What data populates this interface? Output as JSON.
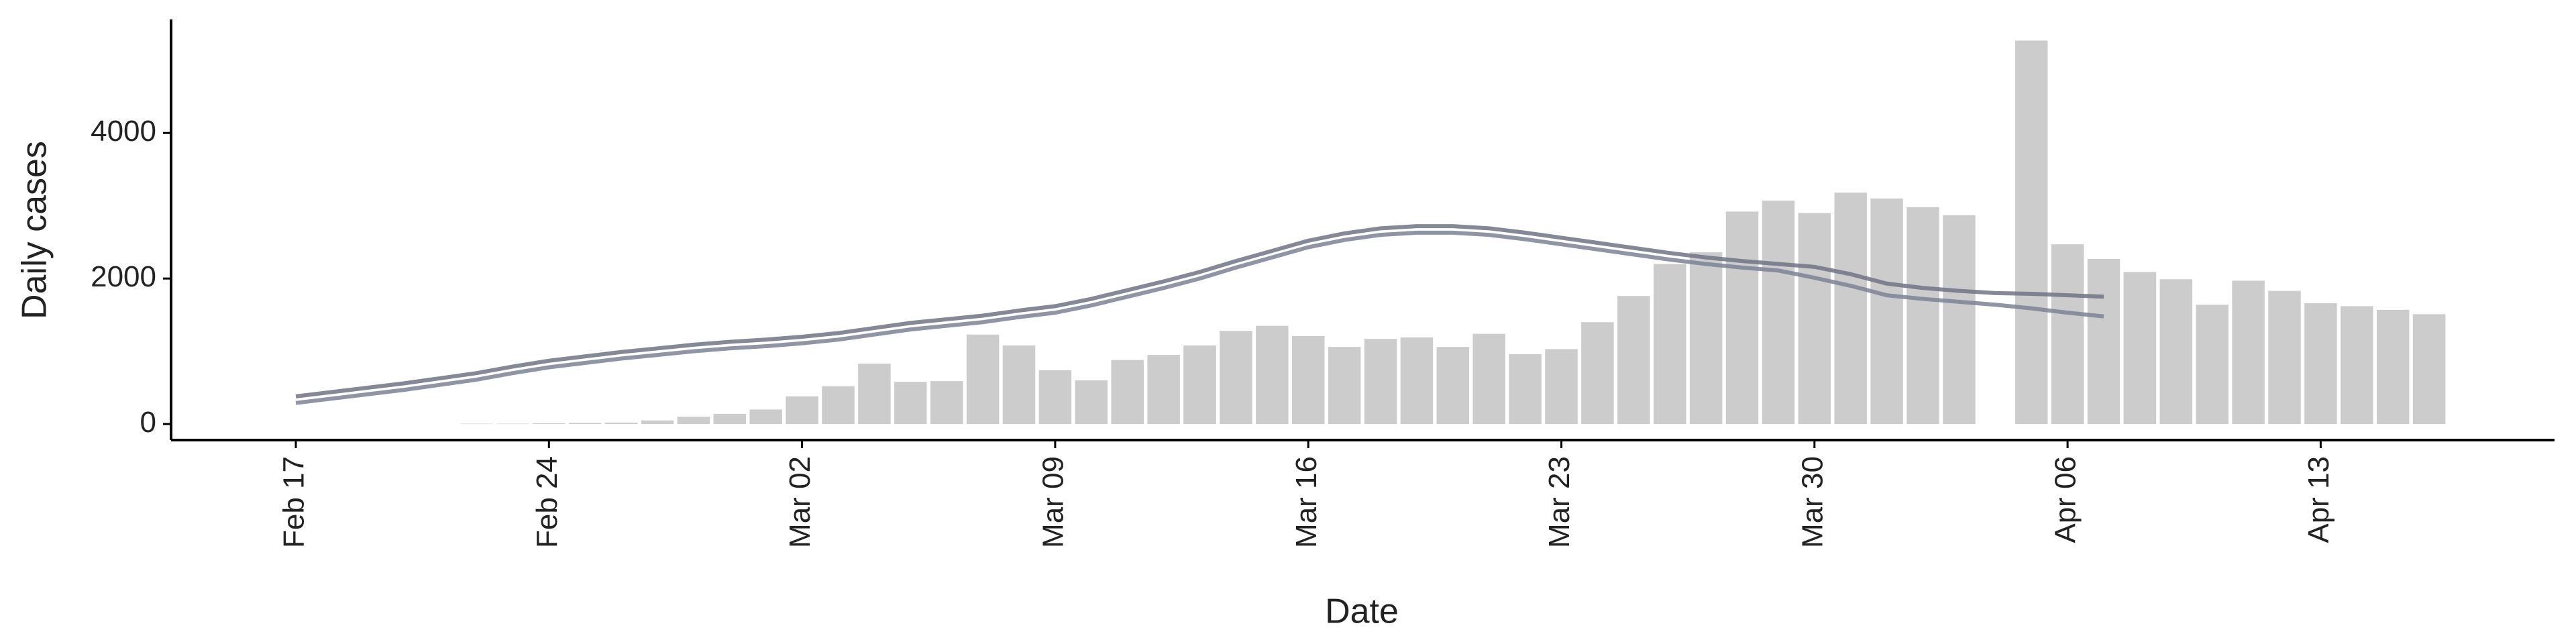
{
  "chart_data": {
    "type": "bar",
    "xlabel": "Date",
    "ylabel": "Daily cases",
    "categories": [
      "Feb 17",
      null,
      null,
      null,
      null,
      null,
      null,
      "Feb 24",
      null,
      null,
      null,
      null,
      null,
      null,
      "Mar 02",
      null,
      null,
      null,
      null,
      null,
      null,
      "Mar 09",
      null,
      null,
      null,
      null,
      null,
      null,
      "Mar 16",
      null,
      null,
      null,
      null,
      null,
      null,
      "Mar 23",
      null,
      null,
      null,
      null,
      null,
      null,
      "Mar 30",
      null,
      null,
      null,
      null,
      null,
      null,
      "Apr 06",
      null,
      null,
      null,
      null,
      null,
      null,
      "Apr 13",
      null,
      null,
      null
    ],
    "series": [
      {
        "type": "bar",
        "color": "#cccccc",
        "values": [
          null,
          null,
          null,
          null,
          null,
          5,
          5,
          10,
          15,
          20,
          50,
          100,
          140,
          200,
          380,
          520,
          830,
          580,
          590,
          1230,
          1080,
          740,
          600,
          880,
          950,
          1080,
          1280,
          1350,
          1210,
          1060,
          1170,
          1190,
          1060,
          1240,
          960,
          1030,
          1400,
          1760,
          2200,
          2360,
          2920,
          3070,
          2900,
          3180,
          3100,
          2980,
          2870,
          null,
          5270,
          2470,
          2270,
          2090,
          1990,
          1640,
          1970,
          1830,
          1660,
          1620,
          1570,
          1510
        ]
      },
      {
        "type": "line",
        "color": "#6e7385",
        "values": [
          380,
          440,
          500,
          560,
          630,
          700,
          790,
          870,
          930,
          990,
          1040,
          1090,
          1130,
          1160,
          1200,
          1250,
          1320,
          1390,
          1440,
          1490,
          1560,
          1620,
          1720,
          1840,
          1960,
          2090,
          2240,
          2380,
          2520,
          2620,
          2690,
          2720,
          2720,
          2690,
          2630,
          2560,
          2490,
          2420,
          2350,
          2290,
          2240,
          2200,
          2160,
          2060,
          1930,
          1870,
          1830,
          1800,
          1790,
          1770,
          1750,
          null,
          null,
          null,
          null,
          null,
          null,
          null,
          null,
          null
        ]
      },
      {
        "type": "line",
        "color": "#7d8296",
        "values": [
          290,
          350,
          410,
          470,
          540,
          610,
          700,
          780,
          840,
          900,
          950,
          1000,
          1040,
          1070,
          1110,
          1160,
          1230,
          1300,
          1350,
          1400,
          1470,
          1530,
          1630,
          1750,
          1870,
          2000,
          2150,
          2290,
          2430,
          2530,
          2600,
          2630,
          2630,
          2600,
          2540,
          2470,
          2400,
          2330,
          2260,
          2200,
          2150,
          2110,
          2010,
          1900,
          1770,
          1720,
          1680,
          1640,
          1590,
          1530,
          1480,
          null,
          null,
          null,
          null,
          null,
          null,
          null,
          null,
          null
        ]
      }
    ],
    "ylim": [
      -220,
      5560
    ],
    "yticks": [
      0,
      2000,
      4000
    ]
  }
}
